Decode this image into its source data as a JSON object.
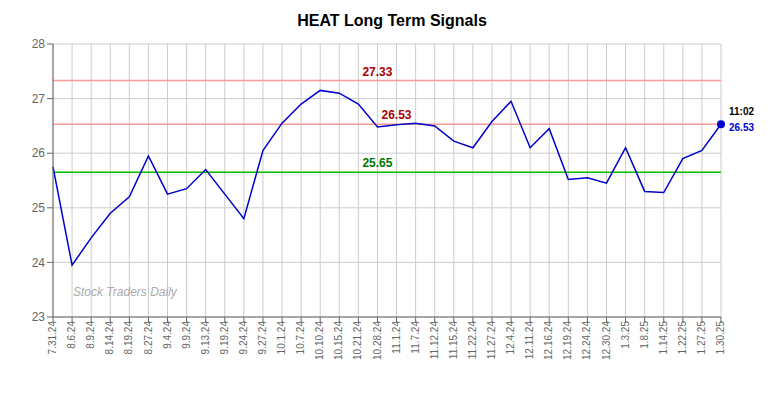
{
  "chart_data": {
    "type": "line",
    "title": "HEAT Long Term Signals",
    "categories": [
      "7.31.24",
      "8.6.24",
      "8.9.24",
      "8.14.24",
      "8.19.24",
      "8.27.24",
      "9.4.24",
      "9.9.24",
      "9.13.24",
      "9.19.24",
      "9.24.24",
      "9.27.24",
      "10.1.24",
      "10.7.24",
      "10.10.24",
      "10.15.24",
      "10.21.24",
      "10.28.24",
      "11.1.24",
      "11.7.24",
      "11.12.24",
      "11.15.24",
      "11.22.24",
      "11.27.24",
      "12.4.24",
      "12.11.24",
      "12.16.24",
      "12.19.24",
      "12.24.24",
      "12.30.24",
      "1.3.25",
      "1.8.25",
      "1.14.25",
      "1.22.25",
      "1.27.25",
      "1.30.25"
    ],
    "values": [
      25.75,
      23.95,
      24.45,
      24.9,
      25.2,
      25.95,
      25.25,
      25.35,
      25.7,
      25.25,
      24.8,
      26.05,
      26.55,
      26.9,
      27.15,
      27.1,
      26.9,
      26.48,
      26.52,
      26.55,
      26.5,
      26.22,
      26.1,
      26.58,
      26.95,
      26.1,
      26.45,
      25.52,
      25.55,
      25.45,
      26.1,
      25.3,
      25.28,
      25.9,
      26.05,
      26.53
    ],
    "color": "#0000cc",
    "ylim": [
      23,
      28
    ],
    "yticks": [
      23,
      24,
      25,
      26,
      27,
      28
    ],
    "grid": true,
    "reference_lines": [
      {
        "value": 27.33,
        "color": "#ff9999"
      },
      {
        "value": 26.53,
        "color": "#ff9999"
      },
      {
        "value": 25.65,
        "color": "#00bb00"
      }
    ],
    "annotations": [
      {
        "text": "27.33",
        "x": "10.28.24",
        "y": 27.33,
        "color": "#aa0000"
      },
      {
        "text": "26.53",
        "x": "11.1.24",
        "y": 26.53,
        "color": "#aa0000"
      },
      {
        "text": "25.65",
        "x": "10.28.24",
        "y": 25.65,
        "color": "#007700"
      }
    ],
    "last_point": {
      "label": "11:02",
      "value": 26.53
    },
    "watermark": "Stock Traders Daily"
  }
}
